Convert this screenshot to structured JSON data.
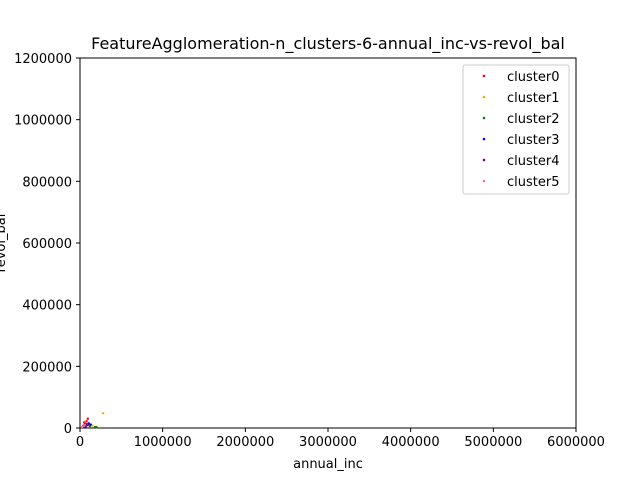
{
  "chart_data": {
    "type": "scatter",
    "title": "FeatureAgglomeration-n_clusters-6-annual_inc-vs-revol_bal",
    "xlabel": "annual_inc",
    "ylabel": "revol_bal",
    "xlim": [
      0,
      6000000
    ],
    "ylim": [
      0,
      1200000
    ],
    "xticks": [
      "0",
      "1000000",
      "2000000",
      "3000000",
      "4000000",
      "5000000",
      "6000000"
    ],
    "yticks": [
      "0",
      "200000",
      "400000",
      "600000",
      "800000",
      "1000000",
      "1200000"
    ],
    "grid": false,
    "legend_position": "top-right",
    "series": [
      {
        "name": "cluster0",
        "color": "#ff0000",
        "points": [
          [
            40000,
            6000
          ],
          [
            55000,
            10000
          ],
          [
            65000,
            14000
          ],
          [
            80000,
            22000
          ],
          [
            95000,
            30000
          ],
          [
            70000,
            5000
          ],
          [
            110000,
            12000
          ],
          [
            50000,
            18000
          ]
        ]
      },
      {
        "name": "cluster1",
        "color": "#ffa500",
        "points": [
          [
            280000,
            48000
          ],
          [
            60000,
            9000
          ],
          [
            150000,
            8000
          ],
          [
            200000,
            4000
          ]
        ]
      },
      {
        "name": "cluster2",
        "color": "#008000",
        "points": [
          [
            200000,
            2000
          ],
          [
            180000,
            3000
          ],
          [
            120000,
            6000
          ]
        ]
      },
      {
        "name": "cluster3",
        "color": "#0000ff",
        "points": [
          [
            90000,
            9000
          ],
          [
            105000,
            15000
          ],
          [
            60000,
            5000
          ],
          [
            130000,
            11000
          ]
        ]
      },
      {
        "name": "cluster4",
        "color": "#800080",
        "points": [
          [
            30000,
            4000
          ],
          [
            45000,
            7000
          ],
          [
            85000,
            12000
          ]
        ]
      },
      {
        "name": "cluster5",
        "color": "#ff69b4",
        "points": [
          [
            25000,
            3000
          ],
          [
            50000,
            6000
          ]
        ]
      }
    ]
  }
}
